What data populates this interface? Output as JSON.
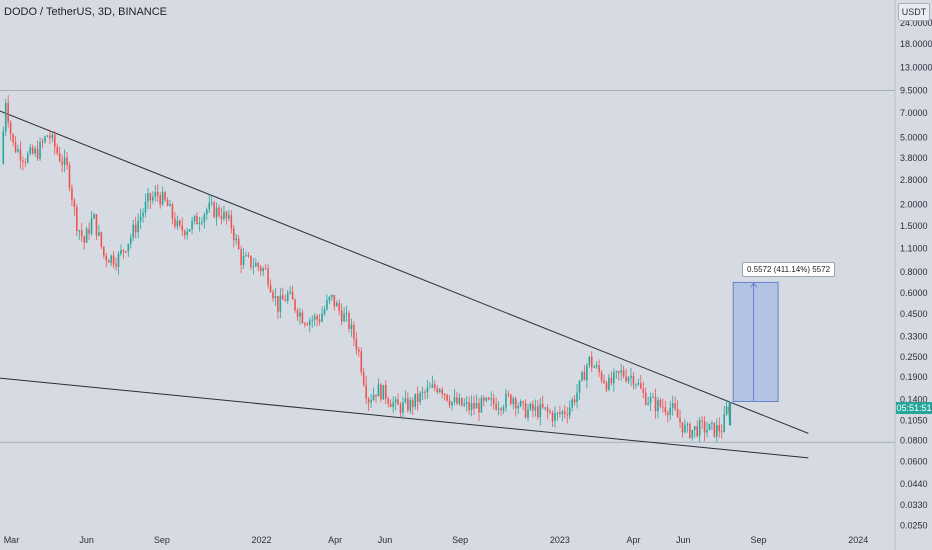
{
  "header": {
    "title": "DODO / TetherUS, 3D, BINANCE"
  },
  "price_axis": {
    "unit": "USDT",
    "current_price_label": "05:51:51"
  },
  "measure": {
    "label": "0.5572 (411.14%) 5572"
  },
  "colors": {
    "background": "#d6dbe3",
    "up_candle": "#26a69a",
    "down_candle": "#ef5350",
    "trendline": "#2a2e39",
    "measure_fill": "#a8b9e3",
    "measure_border": "#5470c6"
  },
  "chart_data": {
    "type": "candlestick",
    "title": "DODO / TetherUS, 3D, BINANCE",
    "y_scale": "log",
    "y_ticks": [
      "24.0000",
      "18.0000",
      "13.0000",
      "9.5000",
      "7.0000",
      "5.0000",
      "3.8000",
      "2.8000",
      "2.0000",
      "1.5000",
      "1.1000",
      "0.8000",
      "0.6000",
      "0.4500",
      "0.3300",
      "0.2500",
      "0.1900",
      "0.1400",
      "0.1050",
      "0.0800",
      "0.0600",
      "0.0440",
      "0.0330",
      "0.0250"
    ],
    "x_ticks": [
      "Mar",
      "Jun",
      "Sep",
      "2022",
      "Apr",
      "Jun",
      "Sep",
      "2023",
      "Apr",
      "Jun",
      "Sep",
      "2024"
    ],
    "x_range": [
      "2021-02-15",
      "2024-02-15"
    ],
    "price_path": [
      [
        "2021-02-19",
        3.5
      ],
      [
        "2021-02-25",
        8.5
      ],
      [
        "2021-03-05",
        4.6
      ],
      [
        "2021-03-20",
        3.8
      ],
      [
        "2021-04-05",
        4.1
      ],
      [
        "2021-04-18",
        5.3
      ],
      [
        "2021-05-01",
        3.9
      ],
      [
        "2021-05-12",
        3.2
      ],
      [
        "2021-05-22",
        1.6
      ],
      [
        "2021-06-01",
        1.2
      ],
      [
        "2021-06-12",
        1.7
      ],
      [
        "2021-06-25",
        1.0
      ],
      [
        "2021-07-12",
        0.95
      ],
      [
        "2021-07-28",
        1.3
      ],
      [
        "2021-08-18",
        2.1
      ],
      [
        "2021-08-30",
        2.3
      ],
      [
        "2021-09-10",
        2.0
      ],
      [
        "2021-09-25",
        1.4
      ],
      [
        "2021-10-10",
        1.5
      ],
      [
        "2021-10-30",
        1.9
      ],
      [
        "2021-11-15",
        1.8
      ],
      [
        "2021-11-28",
        1.5
      ],
      [
        "2021-12-10",
        0.95
      ],
      [
        "2021-12-28",
        0.88
      ],
      [
        "2022-01-10",
        0.8
      ],
      [
        "2022-01-24",
        0.5
      ],
      [
        "2022-02-05",
        0.58
      ],
      [
        "2022-02-25",
        0.42
      ],
      [
        "2022-03-15",
        0.42
      ],
      [
        "2022-03-30",
        0.56
      ],
      [
        "2022-04-08",
        0.48
      ],
      [
        "2022-04-20",
        0.4
      ],
      [
        "2022-05-02",
        0.28
      ],
      [
        "2022-05-14",
        0.14
      ],
      [
        "2022-05-25",
        0.16
      ],
      [
        "2022-06-05",
        0.15
      ],
      [
        "2022-06-18",
        0.125
      ],
      [
        "2022-07-05",
        0.13
      ],
      [
        "2022-07-25",
        0.155
      ],
      [
        "2022-08-10",
        0.17
      ],
      [
        "2022-08-25",
        0.135
      ],
      [
        "2022-09-15",
        0.125
      ],
      [
        "2022-10-05",
        0.13
      ],
      [
        "2022-10-25",
        0.135
      ],
      [
        "2022-11-08",
        0.145
      ],
      [
        "2022-11-20",
        0.12
      ],
      [
        "2022-12-15",
        0.12
      ],
      [
        "2022-12-30",
        0.11
      ],
      [
        "2023-01-15",
        0.125
      ],
      [
        "2023-01-28",
        0.165
      ],
      [
        "2023-02-08",
        0.24
      ],
      [
        "2023-02-18",
        0.21
      ],
      [
        "2023-03-05",
        0.17
      ],
      [
        "2023-03-20",
        0.2
      ],
      [
        "2023-04-05",
        0.19
      ],
      [
        "2023-04-15",
        0.15
      ],
      [
        "2023-05-01",
        0.13
      ],
      [
        "2023-05-20",
        0.125
      ],
      [
        "2023-06-08",
        0.09
      ],
      [
        "2023-06-25",
        0.095
      ],
      [
        "2023-07-12",
        0.092
      ],
      [
        "2023-07-22",
        0.095
      ],
      [
        "2023-07-28",
        0.126
      ]
    ],
    "upper_trendline": [
      [
        "2021-01-25",
        7.9
      ],
      [
        "2023-11-01",
        0.088
      ]
    ],
    "lower_trendline": [
      [
        "2021-02-01",
        0.19
      ],
      [
        "2023-11-01",
        0.063
      ]
    ],
    "horizontal_lines": [
      9.5,
      0.078
    ],
    "measure_range": {
      "from_price": 0.136,
      "to_price": 0.693,
      "change": "0.5572 (411.14%) 5572"
    },
    "last_price": 0.125
  }
}
